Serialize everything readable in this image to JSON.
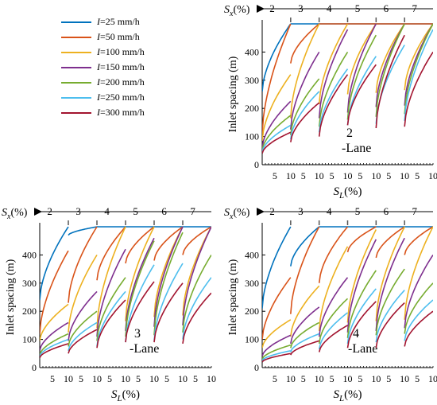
{
  "legend": {
    "variable": "I",
    "items": [
      {
        "label": "=25 mm/h",
        "color": "#0072BD"
      },
      {
        "label": "=50 mm/h",
        "color": "#D95319"
      },
      {
        "label": "=100 mm/h",
        "color": "#EDB120"
      },
      {
        "label": "=150 mm/h",
        "color": "#7E2F8E"
      },
      {
        "label": "=200 mm/h",
        "color": "#77AC30"
      },
      {
        "label": "=250 mm/h",
        "color": "#4DBEEE"
      },
      {
        "label": "=300 mm/h",
        "color": "#A2142F"
      }
    ]
  },
  "chart_data": [
    {
      "type": "line",
      "panel_label": "2\n-Lane",
      "ylabel": "Inlet spacing (m)",
      "xlabel_main": "S",
      "xlabel_sub": "L",
      "xlabel_unit": "(%)",
      "top_label_main": "S",
      "top_label_sub": "x",
      "top_label_unit": "(%)",
      "x_tick_labels": [
        "5",
        "10",
        "5",
        "10",
        "5",
        "10",
        "5",
        "10",
        "5",
        "10",
        "5",
        "10"
      ],
      "ylim": [
        0,
        500
      ],
      "y_ticks": [
        0,
        100,
        200,
        300,
        400
      ],
      "sx_segments": [
        "2",
        "3",
        "4",
        "5",
        "6",
        "7"
      ],
      "sl_range": [
        1,
        10
      ],
      "series": [
        {
          "color": "#0072BD",
          "values_per_segment": [
            [
              260,
              500
            ],
            [
              500,
              500
            ],
            [
              500,
              500
            ],
            [
              500,
              500
            ],
            [
              500,
              500
            ],
            [
              500,
              500
            ]
          ]
        },
        {
          "color": "#D95319",
          "values_per_segment": [
            [
              110,
              500
            ],
            [
              360,
              500
            ],
            [
              500,
              500
            ],
            [
              500,
              500
            ],
            [
              500,
              500
            ],
            [
              500,
              500
            ]
          ]
        },
        {
          "color": "#EDB120",
          "values_per_segment": [
            [
              85,
              320
            ],
            [
              165,
              500
            ],
            [
              215,
              500
            ],
            [
              250,
              500
            ],
            [
              255,
              500
            ],
            [
              265,
              500
            ]
          ]
        },
        {
          "color": "#7E2F8E",
          "values_per_segment": [
            [
              60,
              225
            ],
            [
              125,
              400
            ],
            [
              165,
              480
            ],
            [
              185,
              500
            ],
            [
              205,
              500
            ],
            [
              210,
              500
            ]
          ]
        },
        {
          "color": "#77AC30",
          "values_per_segment": [
            [
              50,
              175
            ],
            [
              105,
              305
            ],
            [
              135,
              400
            ],
            [
              160,
              460
            ],
            [
              170,
              500
            ],
            [
              180,
              500
            ]
          ]
        },
        {
          "color": "#4DBEEE",
          "values_per_segment": [
            [
              45,
              140
            ],
            [
              90,
              260
            ],
            [
              115,
              340
            ],
            [
              140,
              385
            ],
            [
              145,
              425
            ],
            [
              155,
              480
            ]
          ]
        },
        {
          "color": "#A2142F",
          "values_per_segment": [
            [
              40,
              115
            ],
            [
              80,
              220
            ],
            [
              100,
              320
            ],
            [
              140,
              355
            ],
            [
              130,
              460
            ],
            [
              135,
              400
            ]
          ]
        }
      ]
    },
    {
      "type": "line",
      "panel_label": "3\n-Lane",
      "ylabel": "Inlet spacing (m)",
      "xlabel_main": "S",
      "xlabel_sub": "L",
      "xlabel_unit": "(%)",
      "top_label_main": "S",
      "top_label_sub": "x",
      "top_label_unit": "(%)",
      "x_tick_labels": [
        "5",
        "10",
        "5",
        "10",
        "5",
        "10",
        "5",
        "10",
        "5",
        "10",
        "5",
        "10"
      ],
      "ylim": [
        0,
        500
      ],
      "y_ticks": [
        0,
        100,
        200,
        300,
        400
      ],
      "sx_segments": [
        "2",
        "3",
        "4",
        "5",
        "6",
        "7"
      ],
      "sl_range": [
        1,
        10
      ],
      "series": [
        {
          "color": "#0072BD",
          "values_per_segment": [
            [
              240,
              500
            ],
            [
              470,
              500
            ],
            [
              500,
              500
            ],
            [
              500,
              500
            ],
            [
              500,
              500
            ],
            [
              500,
              500
            ]
          ]
        },
        {
          "color": "#D95319",
          "values_per_segment": [
            [
              120,
              415
            ],
            [
              230,
              500
            ],
            [
              310,
              500
            ],
            [
              370,
              500
            ],
            [
              380,
              500
            ],
            [
              400,
              500
            ]
          ]
        },
        {
          "color": "#EDB120",
          "values_per_segment": [
            [
              95,
              225
            ],
            [
              125,
              400
            ],
            [
              140,
              500
            ],
            [
              165,
              500
            ],
            [
              180,
              500
            ],
            [
              185,
              500
            ]
          ]
        },
        {
          "color": "#7E2F8E",
          "values_per_segment": [
            [
              60,
              160
            ],
            [
              95,
              270
            ],
            [
              110,
              420
            ],
            [
              130,
              460
            ],
            [
              145,
              500
            ],
            [
              150,
              500
            ]
          ]
        },
        {
          "color": "#77AC30",
          "values_per_segment": [
            [
              45,
              120
            ],
            [
              75,
              200
            ],
            [
              95,
              320
            ],
            [
              110,
              450
            ],
            [
              115,
              480
            ],
            [
              125,
              400
            ]
          ]
        },
        {
          "color": "#4DBEEE",
          "values_per_segment": [
            [
              40,
              100
            ],
            [
              60,
              160
            ],
            [
              75,
              270
            ],
            [
              90,
              365
            ],
            [
              95,
              370
            ],
            [
              100,
              320
            ]
          ]
        },
        {
          "color": "#A2142F",
          "values_per_segment": [
            [
              35,
              85
            ],
            [
              50,
              135
            ],
            [
              70,
              240
            ],
            [
              90,
              305
            ],
            [
              90,
              300
            ],
            [
              85,
              265
            ]
          ]
        }
      ]
    },
    {
      "type": "line",
      "panel_label": "4\n-Lane",
      "ylabel": "Inlet spacing (m)",
      "xlabel_main": "S",
      "xlabel_sub": "L",
      "xlabel_unit": "(%)",
      "top_label_main": "S",
      "top_label_sub": "x",
      "top_label_unit": "(%)",
      "x_tick_labels": [
        "5",
        "10",
        "5",
        "10",
        "5",
        "10",
        "5",
        "10",
        "5",
        "10",
        "5",
        "10"
      ],
      "ylim": [
        0,
        500
      ],
      "y_ticks": [
        0,
        100,
        200,
        300,
        400
      ],
      "sx_segments": [
        "2",
        "3",
        "4",
        "5",
        "6",
        "7"
      ],
      "sl_range": [
        1,
        10
      ],
      "series": [
        {
          "color": "#0072BD",
          "values_per_segment": [
            [
              210,
              500
            ],
            [
              360,
              500
            ],
            [
              500,
              500
            ],
            [
              500,
              500
            ],
            [
              500,
              500
            ],
            [
              500,
              500
            ]
          ]
        },
        {
          "color": "#D95319",
          "values_per_segment": [
            [
              100,
              320
            ],
            [
              190,
              500
            ],
            [
              300,
              500
            ],
            [
              410,
              500
            ],
            [
              390,
              500
            ],
            [
              400,
              500
            ]
          ]
        },
        {
          "color": "#EDB120",
          "values_per_segment": [
            [
              70,
              170
            ],
            [
              110,
              290
            ],
            [
              130,
              430
            ],
            [
              160,
              490
            ],
            [
              165,
              500
            ],
            [
              170,
              500
            ]
          ]
        },
        {
          "color": "#7E2F8E",
          "values_per_segment": [
            [
              40,
              115
            ],
            [
              85,
              215
            ],
            [
              110,
              320
            ],
            [
              125,
              455
            ],
            [
              130,
              460
            ],
            [
              140,
              400
            ]
          ]
        },
        {
          "color": "#77AC30",
          "values_per_segment": [
            [
              30,
              80
            ],
            [
              70,
              160
            ],
            [
              85,
              245
            ],
            [
              105,
              345
            ],
            [
              115,
              350
            ],
            [
              120,
              300
            ]
          ]
        },
        {
          "color": "#4DBEEE",
          "values_per_segment": [
            [
              25,
              60
            ],
            [
              55,
              120
            ],
            [
              65,
              195
            ],
            [
              85,
              280
            ],
            [
              90,
              275
            ],
            [
              95,
              240
            ]
          ]
        },
        {
          "color": "#A2142F",
          "values_per_segment": [
            [
              20,
              50
            ],
            [
              45,
              95
            ],
            [
              55,
              150
            ],
            [
              70,
              235
            ],
            [
              70,
              230
            ],
            [
              75,
              200
            ]
          ]
        }
      ]
    }
  ]
}
